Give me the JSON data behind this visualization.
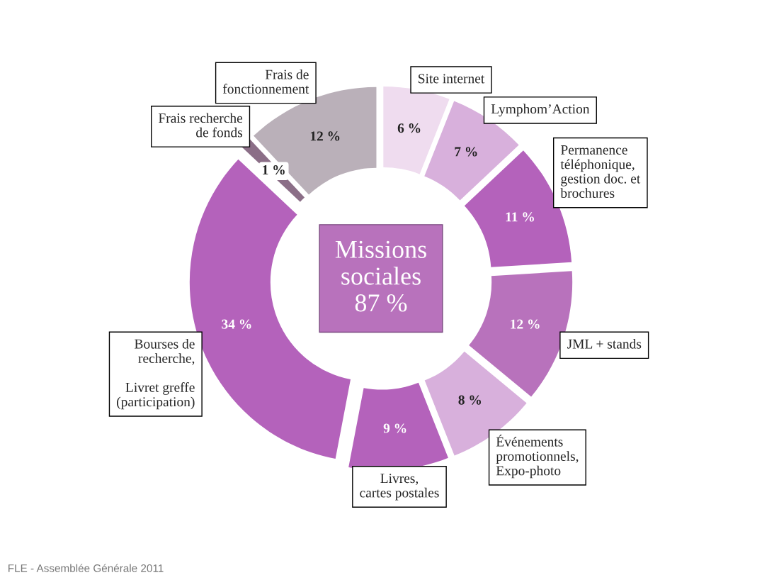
{
  "chart_data": {
    "type": "donut",
    "categories": [
      "Site internet",
      "Lymphom’Action",
      "Permanence\ntéléphonique,\ngestion doc. et\nbrochures",
      "JML + stands",
      "Événements\npromotionnels,\nExpo-photo",
      "Livres,\ncartes postales",
      "Bourses de\nrecherche,\n\nLivret greffe\n(participation)",
      "Frais recherche\nde fonds",
      "Frais de\nfonctionnement"
    ],
    "values": [
      6,
      7,
      11,
      12,
      8,
      9,
      34,
      1,
      12
    ],
    "colors": [
      "#efdcef",
      "#d8b0dc",
      "#b462bb",
      "#b872bc",
      "#d8b0dc",
      "#b462bb",
      "#b462bb",
      "#8b6e87",
      "#bab0b9"
    ],
    "value_labels": [
      "6 %",
      "7 %",
      "11 %",
      "12 %",
      "8 %",
      "9 %",
      "34 %",
      "1 %",
      "12 %"
    ],
    "annotations": [
      "Missions\nsociales\n87 %",
      "FLE - Assemblée Générale 2011"
    ]
  }
}
